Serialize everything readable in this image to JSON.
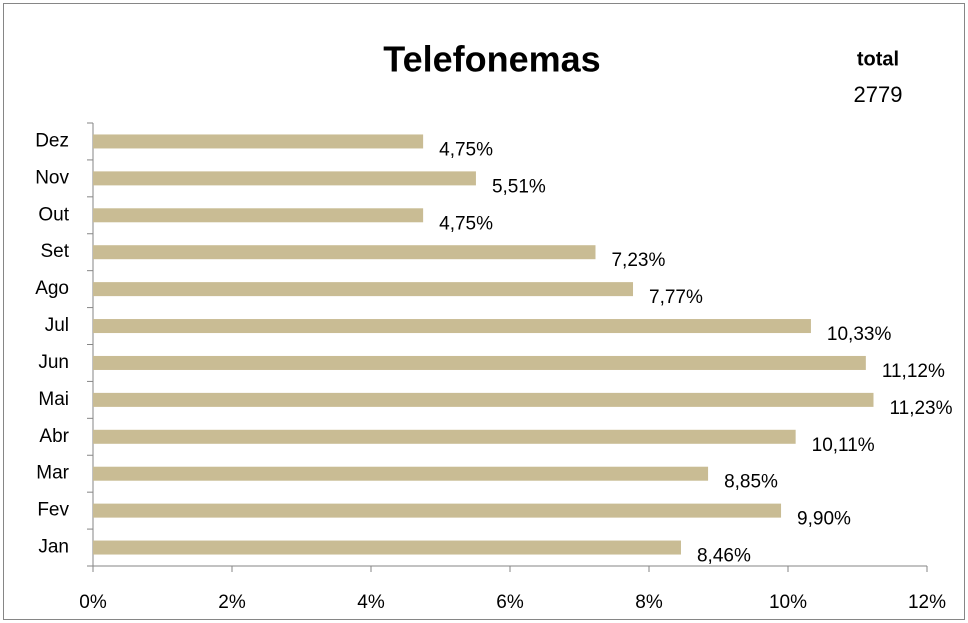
{
  "chart_data": {
    "type": "bar",
    "orientation": "horizontal",
    "title": "Telefonemas",
    "total_label": "total",
    "total": 2779,
    "categories": [
      "Jan",
      "Fev",
      "Mar",
      "Abr",
      "Mai",
      "Jun",
      "Jul",
      "Ago",
      "Set",
      "Out",
      "Nov",
      "Dez"
    ],
    "values": [
      8.46,
      9.9,
      8.85,
      10.11,
      11.23,
      11.12,
      10.33,
      7.77,
      7.23,
      4.75,
      5.51,
      4.75
    ],
    "value_labels": [
      "8,46%",
      "9,90%",
      "8,85%",
      "10,11%",
      "11,23%",
      "11,12%",
      "10,33%",
      "7,77%",
      "7,23%",
      "4,75%",
      "5,51%",
      "4,75%"
    ],
    "color": "#c9bc94",
    "xlim": [
      0,
      12
    ],
    "xticks": [
      {
        "value": 0,
        "label": "0%"
      },
      {
        "value": 2,
        "label": "2%"
      },
      {
        "value": 4,
        "label": "4%"
      },
      {
        "value": 6,
        "label": "6%"
      },
      {
        "value": 8,
        "label": "8%"
      },
      {
        "value": 10,
        "label": "10%"
      },
      {
        "value": 12,
        "label": "12%"
      }
    ],
    "grid": false
  }
}
